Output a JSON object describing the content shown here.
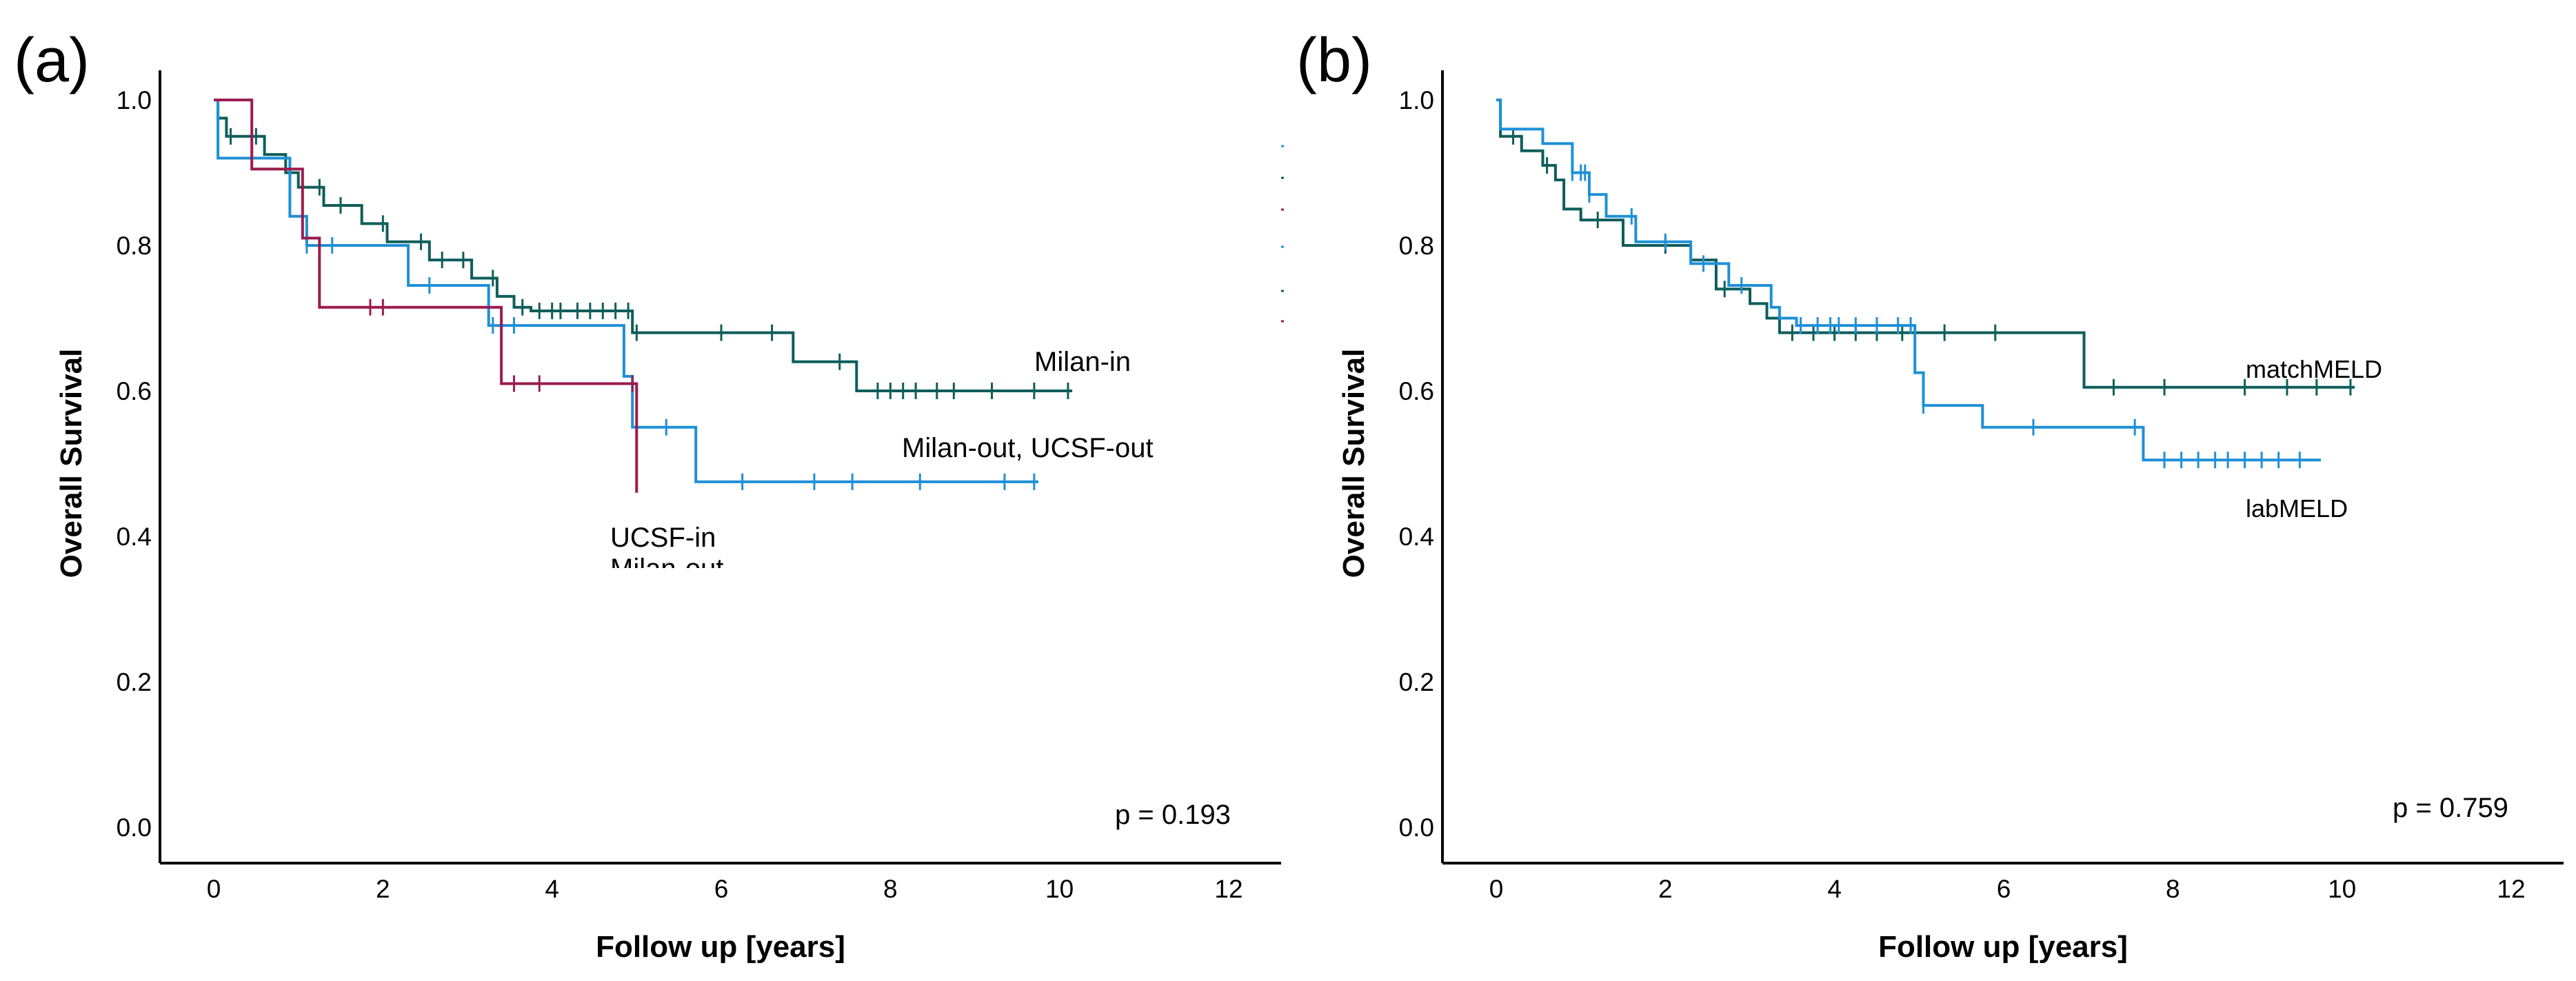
{
  "chart_data": [
    {
      "type": "line",
      "panel": "(a)",
      "xlabel": "Follow up [years]",
      "ylabel": "Overall Survival",
      "xlim": [
        -0.6,
        12.6
      ],
      "ylim": [
        -0.05,
        1.05
      ],
      "xticks": [
        "0",
        "2",
        "4",
        "6",
        "8",
        "10",
        "12"
      ],
      "yticks": [
        "0.0",
        "0.2",
        "0.4",
        "0.6",
        "0.8",
        "1.0"
      ],
      "grid": false,
      "annotation": "p = 0.193",
      "series_labels": [
        "Milan-in",
        "Milan-out, UCSF-out",
        "UCSF-in"
      ],
      "series_labels_overflow": [
        "Milan-out"
      ],
      "series": [
        {
          "color": "#0e5e5a",
          "label_index": 0,
          "x": [
            0,
            0.05,
            0.15,
            0.6,
            0.85,
            1.0,
            1.3,
            1.75,
            2.05,
            2.55,
            3.05,
            3.35,
            3.55,
            3.75,
            4.95,
            6.85,
            7.6,
            10.15
          ],
          "y": [
            1.0,
            0.975,
            0.95,
            0.925,
            0.9,
            0.88,
            0.855,
            0.83,
            0.805,
            0.78,
            0.755,
            0.73,
            0.715,
            0.71,
            0.68,
            0.64,
            0.6,
            0.6
          ],
          "censor_x": [
            0.2,
            0.5,
            0.9,
            1.25,
            1.5,
            2.0,
            2.45,
            2.7,
            2.95,
            3.3,
            3.65,
            3.85,
            4.0,
            4.1,
            4.3,
            4.45,
            4.6,
            4.75,
            4.9,
            5.0,
            6.0,
            6.6,
            7.4,
            7.85,
            8.0,
            8.15,
            8.3,
            8.55,
            8.75,
            9.2,
            9.7,
            10.1
          ]
        },
        {
          "color": "#1e90d8",
          "label_index": 1,
          "x": [
            0,
            0.05,
            0.9,
            1.1,
            2.3,
            3.25,
            4.85,
            4.95,
            5.7,
            9.75
          ],
          "y": [
            1.0,
            0.92,
            0.84,
            0.8,
            0.745,
            0.69,
            0.62,
            0.55,
            0.475,
            0.475
          ],
          "censor_x": [
            1.1,
            1.25,
            1.4,
            2.55,
            3.3,
            3.55,
            5.35,
            6.25,
            7.1,
            7.55,
            8.35,
            9.35,
            9.7
          ]
        },
        {
          "color": "#9b1c4e",
          "label_index": 2,
          "x": [
            0,
            0.45,
            1.05,
            1.25,
            3.4,
            5.0
          ],
          "y": [
            1.0,
            0.905,
            0.81,
            0.715,
            0.61,
            0.46
          ],
          "censor_x": [
            1.85,
            2.0,
            3.55,
            3.85,
            4.95
          ]
        }
      ]
    },
    {
      "type": "line",
      "panel": "(b)",
      "xlabel": "Follow up [years]",
      "ylabel": "Overall Survival",
      "xlim": [
        -0.6,
        12.6
      ],
      "ylim": [
        -0.05,
        1.05
      ],
      "xticks": [
        "0",
        "2",
        "4",
        "6",
        "8",
        "10",
        "12"
      ],
      "yticks": [
        "0.0",
        "0.2",
        "0.4",
        "0.6",
        "0.8",
        "1.0"
      ],
      "grid": false,
      "annotation": "p = 0.759",
      "series_labels": [
        "matchMELD",
        "labMELD"
      ],
      "series": [
        {
          "color": "#0e5e5a",
          "label_index": 0,
          "x": [
            0,
            0.05,
            0.3,
            0.55,
            0.7,
            0.8,
            1.0,
            1.5,
            2.3,
            2.6,
            3.0,
            3.2,
            3.35,
            6.95,
            10.15
          ],
          "y": [
            1.0,
            0.95,
            0.93,
            0.91,
            0.89,
            0.85,
            0.835,
            0.8,
            0.78,
            0.74,
            0.72,
            0.7,
            0.68,
            0.605,
            0.605
          ],
          "censor_x": [
            0.2,
            0.6,
            1.2,
            2.0,
            2.7,
            3.5,
            3.75,
            4.0,
            4.25,
            4.5,
            4.8,
            5.3,
            5.9,
            7.3,
            7.9,
            8.85,
            9.35,
            9.7,
            10.1
          ]
        },
        {
          "color": "#1e90d8",
          "label_index": 1,
          "x": [
            0,
            0.05,
            0.55,
            0.9,
            1.1,
            1.3,
            1.65,
            2.3,
            2.75,
            3.25,
            3.35,
            3.55,
            4.95,
            5.05,
            5.75,
            7.65,
            9.75
          ],
          "y": [
            1.0,
            0.96,
            0.94,
            0.9,
            0.87,
            0.84,
            0.805,
            0.775,
            0.745,
            0.715,
            0.7,
            0.69,
            0.625,
            0.58,
            0.55,
            0.505,
            0.505
          ],
          "censor_x": [
            0.9,
            1.0,
            1.05,
            1.1,
            1.6,
            2.0,
            2.45,
            2.9,
            3.6,
            3.8,
            3.95,
            4.05,
            4.25,
            4.5,
            4.75,
            4.9,
            5.05,
            6.35,
            7.55,
            7.9,
            8.1,
            8.3,
            8.5,
            8.65,
            8.85,
            9.05,
            9.25,
            9.5
          ]
        }
      ]
    }
  ]
}
